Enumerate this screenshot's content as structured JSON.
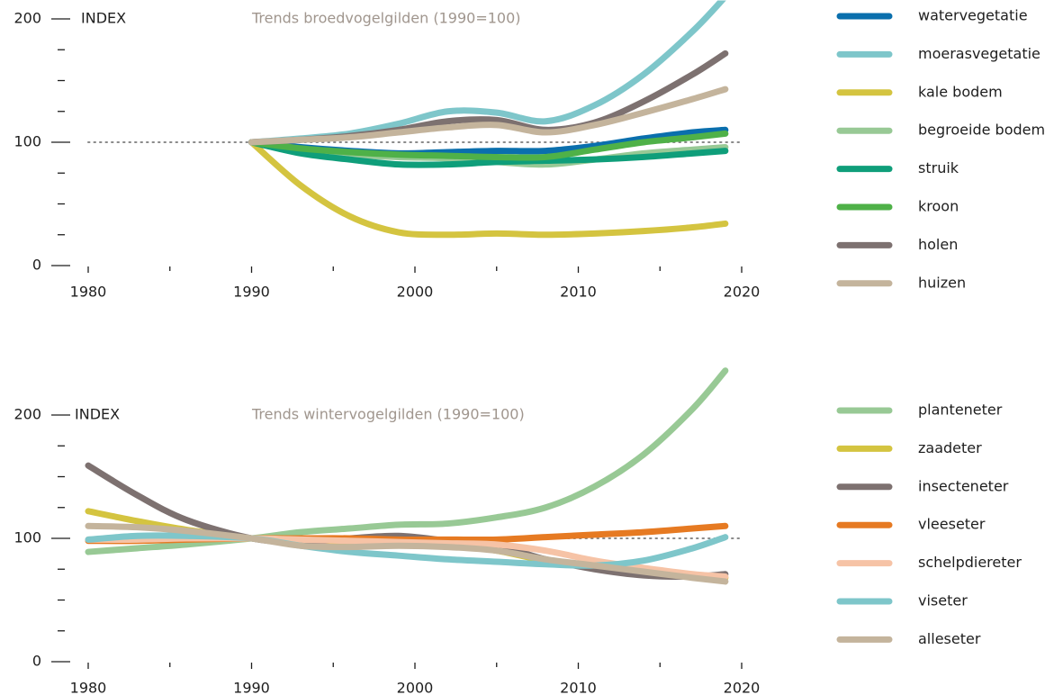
{
  "chart_data": [
    {
      "type": "line",
      "title": "Trends broedvogelgilden (1990=100)",
      "y_label": "INDEX",
      "x": [
        1990,
        1993,
        1996,
        1999,
        2002,
        2005,
        2008,
        2011,
        2014,
        2017,
        2019
      ],
      "xlim": [
        1980,
        2020
      ],
      "xticks": [
        1980,
        1990,
        2000,
        2010,
        2020
      ],
      "xminorticks": [
        1985,
        1995,
        2005,
        2015
      ],
      "ylim": [
        0,
        215
      ],
      "yticks": [
        0,
        100,
        200
      ],
      "yminorticks": [
        25,
        50,
        75,
        125,
        150,
        175
      ],
      "reference_line": 100,
      "series": [
        {
          "name": "watervegetatie",
          "color": "#0a6fad",
          "values": [
            100,
            96,
            93,
            91,
            92,
            93,
            93,
            97,
            103,
            108,
            110
          ]
        },
        {
          "name": "moerasvegetatie",
          "color": "#7ec6ca",
          "values": [
            100,
            103,
            107,
            115,
            125,
            124,
            117,
            130,
            155,
            190,
            218
          ]
        },
        {
          "name": "kale bodem",
          "color": "#d4c440",
          "values": [
            100,
            65,
            40,
            27,
            25,
            26,
            25,
            26,
            28,
            31,
            34
          ]
        },
        {
          "name": "begroeide bodem",
          "color": "#98c995",
          "values": [
            100,
            94,
            90,
            88,
            87,
            84,
            82,
            86,
            91,
            94,
            96
          ]
        },
        {
          "name": "struik",
          "color": "#0f9e7a",
          "values": [
            100,
            91,
            86,
            82,
            82,
            84,
            85,
            86,
            88,
            91,
            93
          ]
        },
        {
          "name": "kroon",
          "color": "#4fb148",
          "values": [
            100,
            95,
            92,
            90,
            89,
            88,
            88,
            94,
            100,
            104,
            107
          ]
        },
        {
          "name": "holen",
          "color": "#7d7170",
          "values": [
            100,
            102,
            105,
            110,
            117,
            118,
            110,
            116,
            133,
            155,
            172
          ]
        },
        {
          "name": "huizen",
          "color": "#c4b49c",
          "values": [
            100,
            102,
            104,
            108,
            112,
            114,
            108,
            114,
            124,
            135,
            143
          ]
        }
      ]
    },
    {
      "type": "line",
      "title": "Trends wintervogelgilden (1990=100)",
      "y_label": "INDEX",
      "x": [
        1980,
        1983,
        1986,
        1990,
        1993,
        1996,
        1999,
        2002,
        2005,
        2008,
        2011,
        2014,
        2017,
        2019
      ],
      "xlim": [
        1980,
        2020
      ],
      "xticks": [
        1980,
        1990,
        2000,
        2010,
        2020
      ],
      "xminorticks": [
        1985,
        1995,
        2005,
        2015
      ],
      "ylim": [
        0,
        240
      ],
      "yticks": [
        0,
        100,
        200
      ],
      "yminorticks": [
        25,
        50,
        75,
        125,
        150,
        175
      ],
      "reference_line": 100,
      "series": [
        {
          "name": "planteneter",
          "color": "#98c995",
          "values": [
            89,
            92,
            95,
            100,
            105,
            108,
            111,
            112,
            117,
            125,
            142,
            168,
            205,
            236
          ]
        },
        {
          "name": "zaadeter",
          "color": "#d4c440",
          "values": [
            122,
            114,
            107,
            100,
            95,
            94,
            96,
            95,
            90,
            82,
            78,
            74,
            70,
            68
          ]
        },
        {
          "name": "insecteneter",
          "color": "#7d7170",
          "values": [
            159,
            135,
            115,
            100,
            97,
            100,
            102,
            98,
            94,
            83,
            75,
            70,
            69,
            71
          ]
        },
        {
          "name": "vleeseter",
          "color": "#e67a22",
          "values": [
            98,
            98,
            99,
            100,
            100,
            100,
            99,
            99,
            99,
            101,
            103,
            105,
            108,
            110
          ]
        },
        {
          "name": "schelpdiereter",
          "color": "#f6c3a6",
          "values": [
            99,
            99,
            100,
            100,
            99,
            98,
            97,
            96,
            95,
            90,
            82,
            76,
            71,
            69
          ]
        },
        {
          "name": "viseter",
          "color": "#7ec6ca",
          "values": [
            99,
            102,
            102,
            100,
            94,
            89,
            86,
            83,
            81,
            79,
            78,
            82,
            92,
            101
          ]
        },
        {
          "name": "alleseter",
          "color": "#c4b49c",
          "values": [
            110,
            109,
            106,
            100,
            94,
            93,
            94,
            93,
            90,
            83,
            78,
            73,
            68,
            65
          ]
        }
      ]
    }
  ]
}
